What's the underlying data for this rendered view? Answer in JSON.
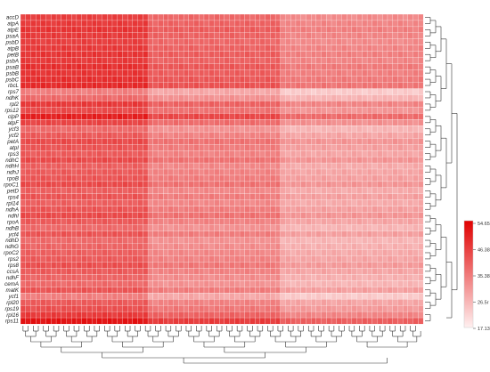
{
  "chart_data": {
    "type": "heatmap",
    "rows": [
      "accD",
      "atpA",
      "atpE",
      "psaA",
      "psbD",
      "atpB",
      "petB",
      "psbA",
      "psaB",
      "psbB",
      "psbC",
      "rbcL",
      "rps7",
      "ndhK",
      "rpl2",
      "rps12",
      "clpP",
      "atpF",
      "ycf3",
      "ycf2",
      "petA",
      "atpI",
      "rps3",
      "ndhC",
      "ndhH",
      "ndhJ",
      "rpoB",
      "rpoC1",
      "petD",
      "rps4",
      "rpl14",
      "ndhA",
      "ndhI",
      "rpoA",
      "ndhB",
      "ycf4",
      "ndhD",
      "ndhG",
      "rpoC2",
      "rps2",
      "rps8",
      "ccsA",
      "ndhF",
      "cemA",
      "matK",
      "ycf1",
      "rpl20",
      "rps19",
      "rpl16",
      "rps11"
    ],
    "row_colors": [
      32,
      33,
      34,
      33,
      32,
      33,
      34,
      33,
      35,
      34,
      35,
      36,
      20,
      24,
      33,
      30,
      38,
      31,
      24,
      27,
      30,
      28,
      27,
      30,
      26,
      27,
      28,
      30,
      26,
      28,
      26,
      28,
      30,
      27,
      24,
      28,
      24,
      25,
      26,
      27,
      29,
      27,
      25,
      24,
      28,
      20,
      27,
      29,
      33,
      40
    ],
    "column_groups": [
      {
        "count": 25,
        "offset": 14.0
      },
      {
        "count": 26,
        "offset": 6.5
      },
      {
        "count": 28,
        "offset": 0.0
      }
    ],
    "colorbar": {
      "ticks": [
        "54.65",
        "46.38",
        "35.38",
        "26.5r",
        "17.13"
      ],
      "min": 17.13,
      "max": 54.65
    }
  }
}
